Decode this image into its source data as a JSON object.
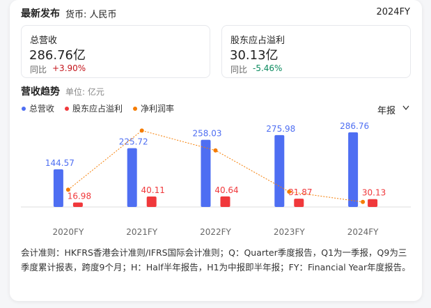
{
  "header": {
    "title": "最新发布",
    "currency": "货币: 人民币",
    "period": "2024FY"
  },
  "summary": [
    {
      "label": "总营收",
      "value": "286.76亿",
      "yoy_label": "同比",
      "yoy": "+3.90%"
    },
    {
      "label": "股东应占溢利",
      "value": "30.13亿",
      "yoy_label": "同比",
      "yoy": "-5.46%"
    }
  ],
  "section": {
    "title": "营收趋势",
    "unit": "单位: 亿元",
    "dropdown": "年报"
  },
  "chart_data": {
    "type": "bar",
    "legend": "top-left",
    "categories": [
      "2020FY",
      "2021FY",
      "2022FY",
      "2023FY",
      "2024FY"
    ],
    "ylim": [
      0,
      340
    ],
    "y2lim": [
      10,
      19
    ],
    "series": [
      {
        "name": "总营收",
        "color": "#4e6ef2",
        "values": [
          144.57,
          225.72,
          258.03,
          275.98,
          286.76
        ]
      },
      {
        "name": "股东应占溢利",
        "color": "#f0383b",
        "values": [
          16.98,
          40.11,
          40.64,
          31.87,
          30.13
        ]
      },
      {
        "name": "净利润率",
        "color": "#f57c00",
        "type": "line",
        "axis": "y2",
        "values": [
          11.75,
          17.77,
          15.75,
          11.55,
          10.51
        ]
      }
    ]
  },
  "footer": "会计准则：HKFRS香港会计准则/IFRS国际会计准则；Q：Quarter季度报告，Q1为一季报，Q9为三季度累计报表，跨度9个月；H：Half半年报告，H1为中报即半年报；FY：Financial Year年度报告。"
}
